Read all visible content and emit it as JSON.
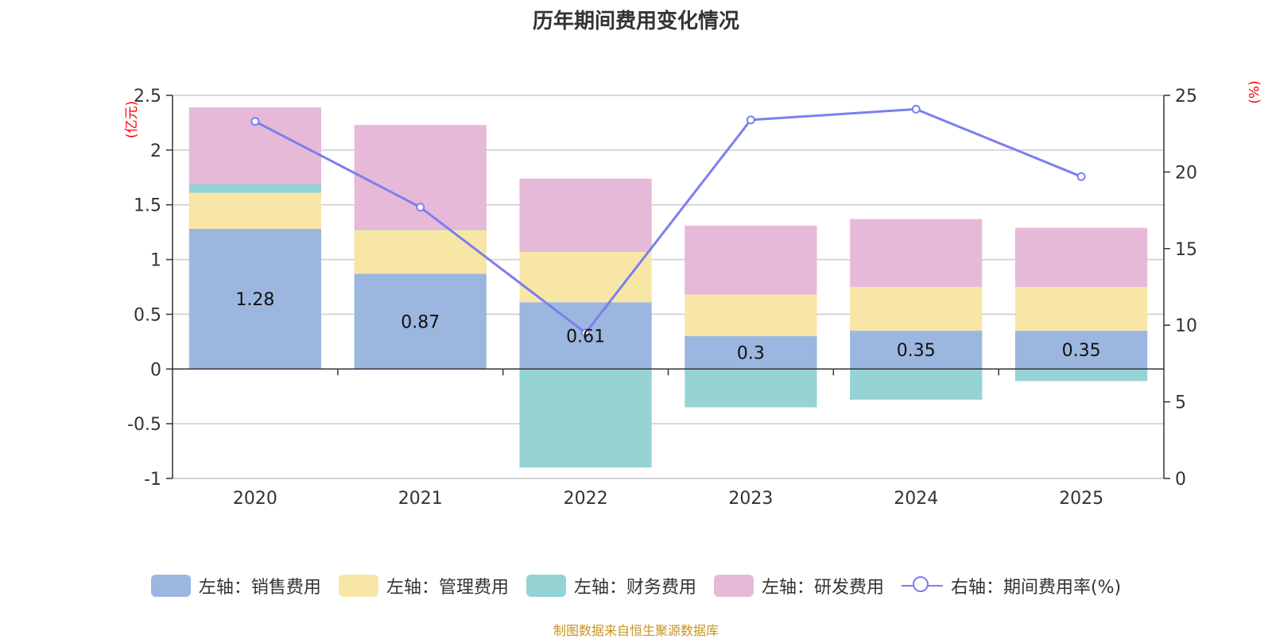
{
  "chart_data": {
    "type": "bar",
    "title": "历年期间费用变化情况",
    "categories": [
      "2020",
      "2021",
      "2022",
      "2023",
      "2024",
      "2025"
    ],
    "left_axis": {
      "unit": "(亿元)",
      "ylim": [
        -1,
        2.5
      ],
      "ticks": [
        "2.5",
        "2",
        "1.5",
        "1",
        "0.5",
        "0",
        "-0.5",
        "-1"
      ]
    },
    "right_axis": {
      "unit": "(%)",
      "ylim": [
        0,
        25
      ],
      "ticks": [
        "25",
        "20",
        "15",
        "10",
        "5",
        "0"
      ]
    },
    "series": [
      {
        "name": "左轴：销售费用",
        "axis": "left",
        "color": "#9bb7e0",
        "values": [
          1.28,
          0.87,
          0.61,
          0.3,
          0.35,
          0.35
        ],
        "labels": [
          "1.28",
          "0.87",
          "0.61",
          "0.3",
          "0.35",
          "0.35"
        ]
      },
      {
        "name": "左轴：管理费用",
        "axis": "left",
        "color": "#f8e6a6",
        "values": [
          0.33,
          0.4,
          0.46,
          0.38,
          0.4,
          0.4
        ]
      },
      {
        "name": "左轴：财务费用",
        "axis": "left",
        "color": "#95d3d4",
        "values": [
          0.08,
          0.01,
          -0.9,
          -0.35,
          -0.28,
          -0.11
        ]
      },
      {
        "name": "左轴：研发费用",
        "axis": "left",
        "color": "#e7b9d9",
        "values": [
          0.7,
          0.95,
          0.67,
          0.63,
          0.62,
          0.54
        ]
      },
      {
        "name": "右轴：期间费用率(%)",
        "axis": "right",
        "type": "line",
        "color": "#7b7fee",
        "values": [
          23.3,
          17.7,
          9.5,
          23.4,
          24.1,
          19.7
        ]
      }
    ]
  },
  "source": "制图数据来自恒生聚源数据库"
}
